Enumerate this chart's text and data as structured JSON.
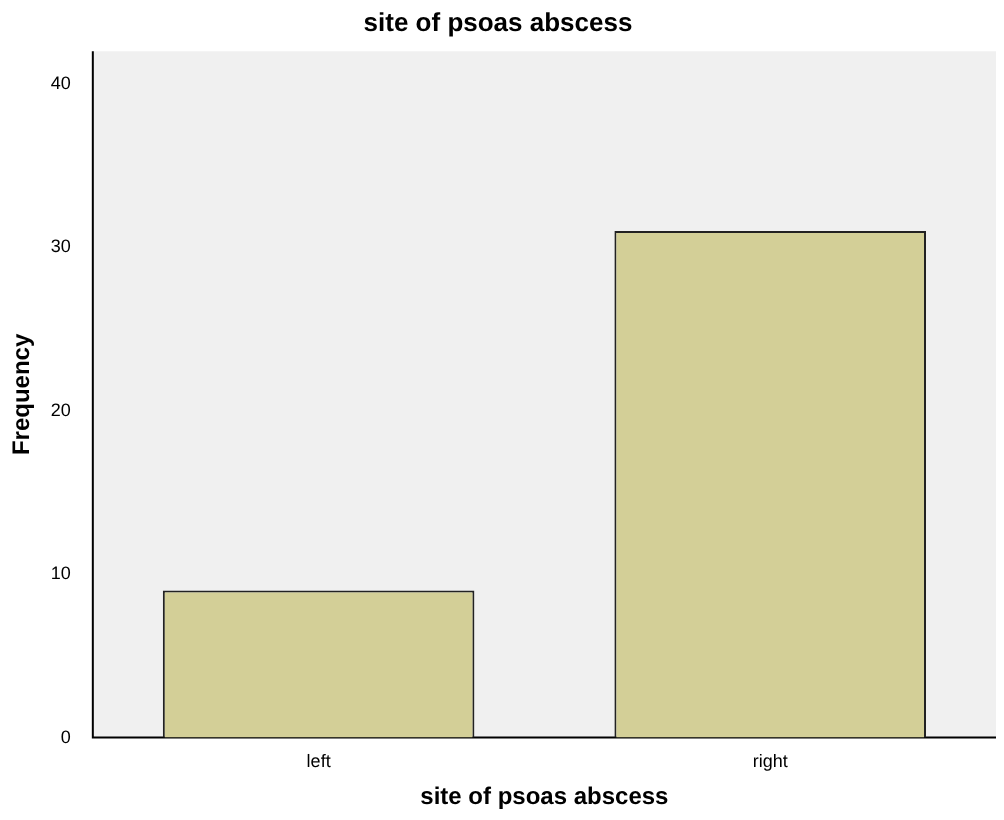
{
  "chart_data": {
    "type": "bar",
    "title": "site of psoas abscess",
    "xlabel": "site of psoas abscess",
    "ylabel": "Frequency",
    "categories": [
      "left",
      "right"
    ],
    "values": [
      9,
      31
    ],
    "color": "#d3cf97",
    "ylim": [
      0,
      42
    ],
    "yticks": [
      0,
      10,
      20,
      30,
      40
    ],
    "grid": false,
    "legend": false
  }
}
